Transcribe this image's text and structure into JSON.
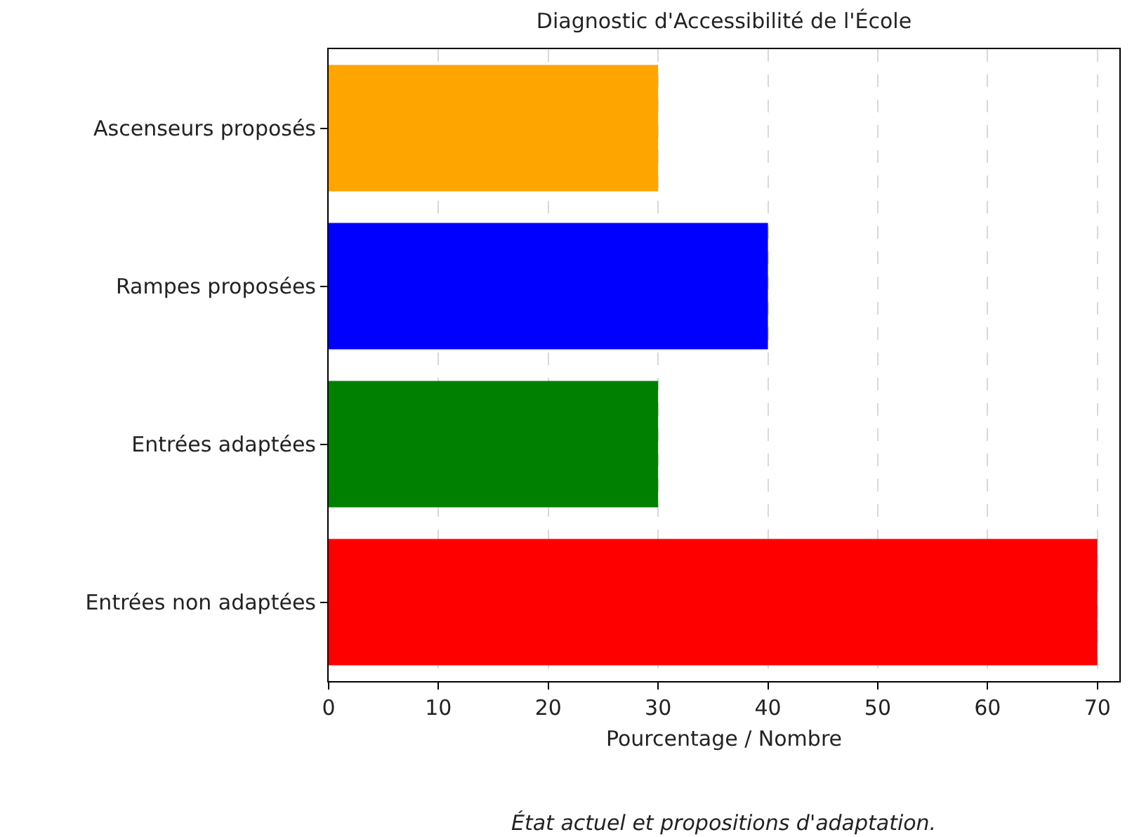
{
  "chart_data": {
    "type": "bar",
    "orientation": "horizontal",
    "title": "Diagnostic d'Accessibilité de l'École",
    "xlabel": "Pourcentage / Nombre",
    "categories": [
      "Ascenseurs proposés",
      "Rampes proposées",
      "Entrées adaptées",
      "Entrées non adaptées"
    ],
    "values": [
      30,
      40,
      30,
      70
    ],
    "colors": [
      "#ffa500",
      "#0000ff",
      "#008000",
      "#ff0000"
    ],
    "xlim": [
      0,
      72
    ],
    "xticks": [
      0,
      10,
      20,
      30,
      40,
      50,
      60,
      70
    ],
    "grid": "x",
    "legend": false,
    "annotations": [
      "État actuel et propositions d'adaptation."
    ]
  }
}
